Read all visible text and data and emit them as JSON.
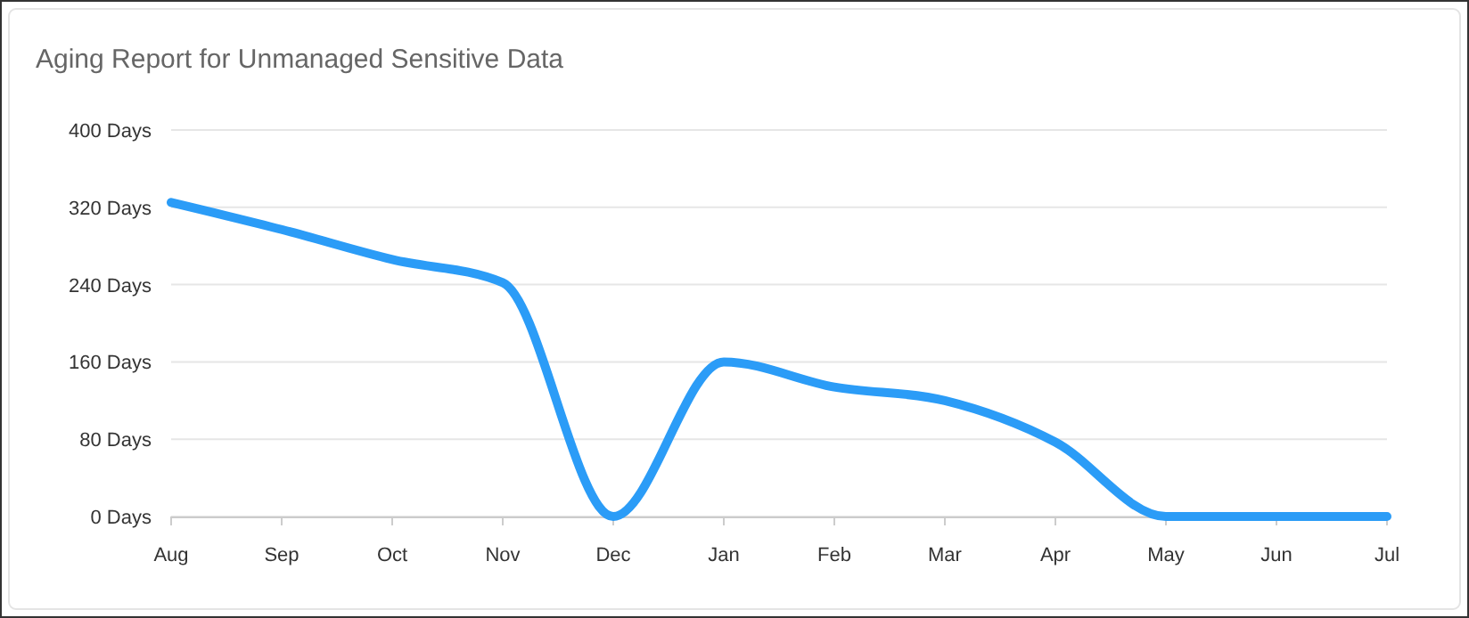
{
  "chart_data": {
    "type": "line",
    "title": "Aging Report for Unmanaged Sensitive Data",
    "categories": [
      "Aug",
      "Sep",
      "Oct",
      "Nov",
      "Dec",
      "Jan",
      "Feb",
      "Mar",
      "Apr",
      "May",
      "Jun",
      "Jul"
    ],
    "series": [
      {
        "color": "#2b9cf7",
        "values": [
          325,
          297,
          266,
          242,
          0,
          160,
          134,
          120,
          77,
          0,
          0,
          0
        ]
      }
    ],
    "ylim": [
      0,
      400
    ],
    "yticks": [
      {
        "value": 0,
        "label": "0 Days"
      },
      {
        "value": 80,
        "label": "80 Days"
      },
      {
        "value": 160,
        "label": "160 Days"
      },
      {
        "value": 240,
        "label": "240 Days"
      },
      {
        "value": 320,
        "label": "320 Days"
      },
      {
        "value": 400,
        "label": "400 Days"
      }
    ],
    "grid": "y",
    "marker": "none",
    "line_style": "solid"
  }
}
